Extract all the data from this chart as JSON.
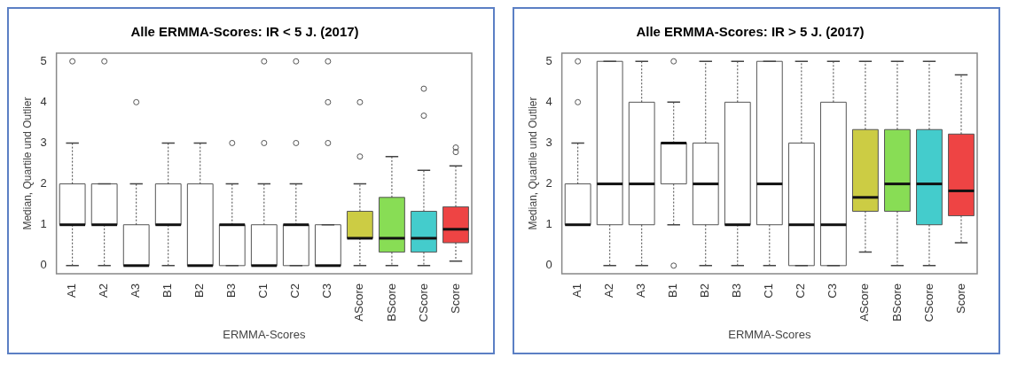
{
  "chart_data": [
    {
      "type": "box",
      "title": "Alle ERMMA-Scores: IR < 5 J. (2017)",
      "xlabel": "ERMMA-Scores",
      "ylabel": "Median, Quartile und Outlier",
      "categories": [
        "A1",
        "A2",
        "A3",
        "B1",
        "B2",
        "B3",
        "C1",
        "C2",
        "C3",
        "AScore",
        "BScore",
        "CScore",
        "Score"
      ],
      "colors": [
        "#ffffff",
        "#ffffff",
        "#ffffff",
        "#ffffff",
        "#ffffff",
        "#ffffff",
        "#ffffff",
        "#ffffff",
        "#ffffff",
        "#cccc44",
        "#88dd55",
        "#44cccc",
        "#ee4444"
      ],
      "boxes": [
        {
          "low": 0,
          "q1": 1,
          "median": 1,
          "q3": 2,
          "high": 3,
          "outliers": [
            5
          ]
        },
        {
          "low": 0,
          "q1": 1,
          "median": 1,
          "q3": 2,
          "high": 2,
          "outliers": [
            5
          ]
        },
        {
          "low": 0,
          "q1": 0,
          "median": 0,
          "q3": 1,
          "high": 2,
          "outliers": [
            4
          ]
        },
        {
          "low": 0,
          "q1": 1,
          "median": 1,
          "q3": 2,
          "high": 3
        },
        {
          "low": 0,
          "q1": 0,
          "median": 0,
          "q3": 2,
          "high": 3
        },
        {
          "low": 0,
          "q1": 0,
          "median": 1,
          "q3": 1,
          "high": 2,
          "outliers": [
            3
          ]
        },
        {
          "low": 0,
          "q1": 0,
          "median": 0,
          "q3": 1,
          "high": 2,
          "outliers": [
            3,
            5
          ]
        },
        {
          "low": 0,
          "q1": 0,
          "median": 1,
          "q3": 1,
          "high": 2,
          "outliers": [
            3,
            5
          ]
        },
        {
          "low": 0,
          "q1": 0,
          "median": 0,
          "q3": 1,
          "high": 1,
          "outliers": [
            3,
            4,
            5
          ]
        },
        {
          "low": 0,
          "q1": 0.67,
          "median": 0.67,
          "q3": 1.33,
          "high": 2,
          "outliers": [
            2.67,
            4
          ]
        },
        {
          "low": 0,
          "q1": 0.33,
          "median": 0.67,
          "q3": 1.67,
          "high": 2.67
        },
        {
          "low": 0,
          "q1": 0.33,
          "median": 0.67,
          "q3": 1.33,
          "high": 2.33,
          "outliers": [
            3.67,
            4.33
          ]
        },
        {
          "low": 0.11,
          "q1": 0.56,
          "median": 0.89,
          "q3": 1.44,
          "high": 2.44,
          "outliers": [
            2.78,
            2.89
          ]
        }
      ],
      "ylim": [
        -0.2,
        5.2
      ],
      "yticks": [
        0,
        1,
        2,
        3,
        4,
        5
      ],
      "grid": false
    },
    {
      "type": "box",
      "title": "Alle ERMMA-Scores: IR > 5 J. (2017)",
      "xlabel": "ERMMA-Scores",
      "ylabel": "Median, Quartile und Outlier",
      "categories": [
        "A1",
        "A2",
        "A3",
        "B1",
        "B2",
        "B3",
        "C1",
        "C2",
        "C3",
        "AScore",
        "BScore",
        "CScore",
        "Score"
      ],
      "colors": [
        "#ffffff",
        "#ffffff",
        "#ffffff",
        "#ffffff",
        "#ffffff",
        "#ffffff",
        "#ffffff",
        "#ffffff",
        "#ffffff",
        "#cccc44",
        "#88dd55",
        "#44cccc",
        "#ee4444"
      ],
      "boxes": [
        {
          "low": 1,
          "q1": 1,
          "median": 1,
          "q3": 2,
          "high": 3,
          "outliers": [
            4,
            5
          ]
        },
        {
          "low": 0,
          "q1": 1,
          "median": 2,
          "q3": 5,
          "high": 5
        },
        {
          "low": 0,
          "q1": 1,
          "median": 2,
          "q3": 4,
          "high": 5
        },
        {
          "low": 1,
          "q1": 2,
          "median": 3,
          "q3": 3,
          "high": 4,
          "outliers": [
            0,
            5
          ]
        },
        {
          "low": 0,
          "q1": 1,
          "median": 2,
          "q3": 3,
          "high": 5
        },
        {
          "low": 0,
          "q1": 1,
          "median": 1,
          "q3": 4,
          "high": 5
        },
        {
          "low": 0,
          "q1": 1,
          "median": 2,
          "q3": 5,
          "high": 5
        },
        {
          "low": 0,
          "q1": 0,
          "median": 1,
          "q3": 3,
          "high": 5
        },
        {
          "low": 0,
          "q1": 0,
          "median": 1,
          "q3": 4,
          "high": 5
        },
        {
          "low": 0.33,
          "q1": 1.33,
          "median": 1.67,
          "q3": 3.33,
          "high": 5
        },
        {
          "low": 0,
          "q1": 1.33,
          "median": 2,
          "q3": 3.33,
          "high": 5
        },
        {
          "low": 0,
          "q1": 1,
          "median": 2,
          "q3": 3.33,
          "high": 5
        },
        {
          "low": 0.56,
          "q1": 1.22,
          "median": 1.83,
          "q3": 3.22,
          "high": 4.67
        }
      ],
      "ylim": [
        -0.2,
        5.2
      ],
      "yticks": [
        0,
        1,
        2,
        3,
        4,
        5
      ],
      "grid": false
    }
  ]
}
